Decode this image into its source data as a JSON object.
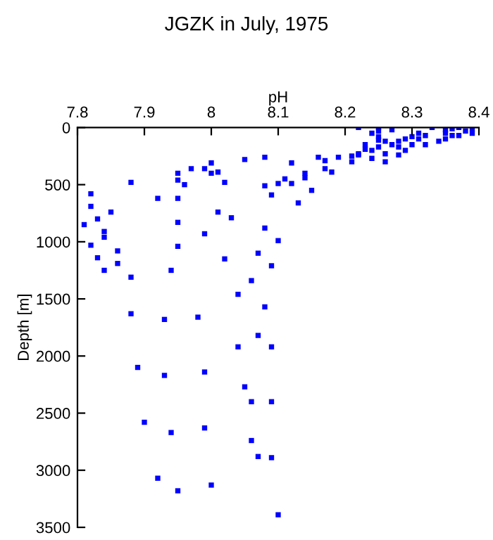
{
  "chart_data": {
    "type": "scatter",
    "title": "JGZK in July, 1975",
    "xlabel": "pH",
    "ylabel": "Depth [m]",
    "xlim": [
      7.8,
      8.4
    ],
    "xticks": [
      7.8,
      7.9,
      8,
      8.1,
      8.2,
      8.3,
      8.4
    ],
    "ylim": [
      3500,
      0
    ],
    "yticks": [
      0,
      500,
      1000,
      1500,
      2000,
      2500,
      3000,
      3500
    ],
    "marker": "square",
    "grid": false,
    "series": [
      {
        "color": "#0000ff",
        "x": [
          8.05,
          8.0,
          8.01,
          8.0,
          7.97,
          7.99,
          7.95,
          7.95,
          7.96,
          8.02,
          7.88,
          7.82,
          7.92,
          7.95,
          7.82,
          7.85,
          8.01,
          7.83,
          8.03,
          7.81,
          7.95,
          7.84,
          7.99,
          7.84,
          7.82,
          7.95,
          7.86,
          7.83,
          8.02,
          7.86,
          7.84,
          7.94,
          7.88,
          8.04,
          7.88,
          7.93,
          7.98,
          8.04,
          8.08,
          8.12,
          8.16,
          8.17,
          8.19,
          8.17,
          8.18,
          8.14,
          8.14,
          8.11,
          8.1,
          8.08,
          8.12,
          8.09,
          8.15,
          8.13,
          8.08,
          8.1,
          8.07,
          8.09,
          8.06,
          8.08,
          8.07,
          8.09,
          8.22,
          8.25,
          8.25,
          8.27,
          8.33,
          8.35,
          8.35,
          8.36,
          8.36,
          8.37,
          8.37,
          8.38,
          8.39,
          8.39,
          8.25,
          8.24,
          8.26,
          8.27,
          8.28,
          8.29,
          8.3,
          8.31,
          8.31,
          8.32,
          8.3,
          8.29,
          8.28,
          8.28,
          8.32,
          8.34,
          8.35,
          8.23,
          8.23,
          8.22,
          8.24,
          8.25,
          8.25,
          8.26,
          8.24,
          8.26,
          8.21,
          8.21,
          8.22,
          7.89,
          7.93,
          7.99,
          8.05,
          7.9,
          7.94,
          7.99,
          7.92,
          7.95,
          8.0,
          8.06,
          8.09,
          8.06,
          8.07,
          8.09,
          8.1
        ],
        "values": [
          280,
          310,
          390,
          400,
          360,
          360,
          400,
          460,
          500,
          480,
          480,
          580,
          620,
          620,
          690,
          740,
          740,
          800,
          790,
          850,
          830,
          910,
          930,
          960,
          1030,
          1040,
          1080,
          1140,
          1150,
          1190,
          1250,
          1250,
          1310,
          1460,
          1630,
          1680,
          1660,
          1920,
          260,
          310,
          260,
          290,
          260,
          360,
          390,
          400,
          440,
          450,
          490,
          510,
          490,
          590,
          550,
          660,
          880,
          990,
          1100,
          1210,
          1340,
          1570,
          1820,
          1920,
          0,
          0,
          30,
          20,
          0,
          20,
          50,
          10,
          70,
          0,
          70,
          30,
          10,
          50,
          80,
          50,
          120,
          150,
          120,
          100,
          80,
          50,
          100,
          70,
          150,
          200,
          170,
          240,
          150,
          120,
          100,
          150,
          190,
          230,
          200,
          170,
          110,
          230,
          270,
          300,
          300,
          250,
          240,
          2100,
          2170,
          2140,
          2270,
          2580,
          2670,
          2630,
          3070,
          3180,
          3130,
          2400,
          2400,
          2740,
          2880,
          2890,
          3390
        ]
      }
    ]
  }
}
